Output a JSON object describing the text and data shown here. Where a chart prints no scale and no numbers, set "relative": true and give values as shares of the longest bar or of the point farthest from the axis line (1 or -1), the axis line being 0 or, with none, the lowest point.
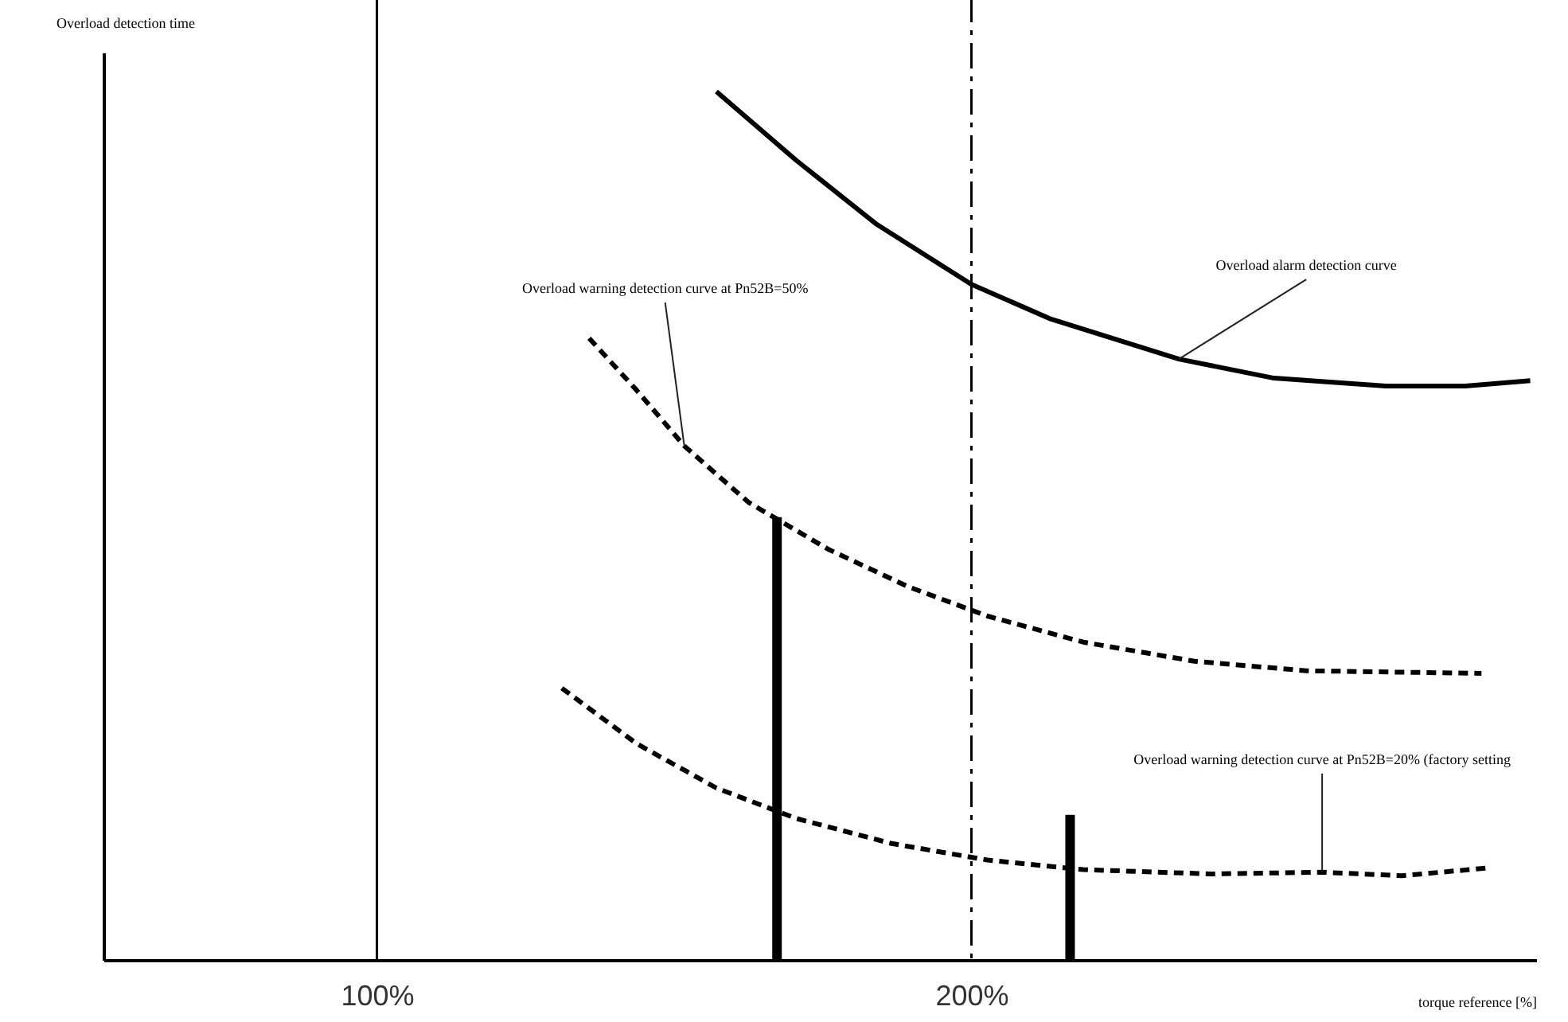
{
  "chart_data": {
    "type": "line",
    "relative": true,
    "xlabel": "torque reference [%]",
    "ylabel": "Overload detection time",
    "xlim": [
      54,
      295
    ],
    "xticks": [
      {
        "value": 100,
        "label": "100%"
      },
      {
        "value": 200,
        "label": "200%"
      }
    ],
    "grid": false,
    "series": [
      {
        "color": "#000000",
        "line_style": "solid",
        "x": [
          157.1,
          170.5,
          183.9,
          200,
          213.4,
          234.9,
          250.9,
          269.7,
          283.1,
          294
        ],
        "values": [
          1,
          0.921,
          0.848,
          0.778,
          0.738,
          0.692,
          0.67,
          0.661,
          0.661,
          0.667
        ]
      },
      {
        "color": "#000000",
        "line_style": "dashed",
        "x": [
          135.7,
          143.7,
          151.7,
          162.5,
          175.9,
          189.3,
          202.7,
          218.8,
          237.5,
          256.3,
          285.8
        ],
        "values": [
          0.716,
          0.656,
          0.592,
          0.527,
          0.473,
          0.43,
          0.396,
          0.366,
          0.344,
          0.333,
          0.33
        ]
      },
      {
        "color": "#000000",
        "line_style": "dashed",
        "x": [
          131.1,
          143.7,
          157.1,
          170.5,
          186.6,
          202.7,
          218.8,
          240.2,
          259.0,
          272.4,
          287.1
        ],
        "values": [
          0.313,
          0.249,
          0.198,
          0.163,
          0.134,
          0.115,
          0.104,
          0.099,
          0.101,
          0.097,
          0.106
        ]
      },
      {
        "color": "#000000",
        "line_style": "solid",
        "x": [
          167.3,
          167.3
        ],
        "values": [
          0,
          0.51
        ]
      },
      {
        "color": "#000000",
        "line_style": "solid",
        "x": [
          216.6,
          216.6
        ],
        "values": [
          0,
          0.167
        ]
      }
    ],
    "ref_lines": [
      {
        "axis": "x",
        "value": 100,
        "color": "#000000",
        "line_style": "solid"
      },
      {
        "axis": "x",
        "value": 200,
        "color": "#000000",
        "line_style": "dashed"
      }
    ],
    "annotations": [
      {
        "text": "Overload alarm detection curve",
        "x": 234.9,
        "y": 0.692
      },
      {
        "text": "Overload warning detection curve at Pn52B=50%",
        "x": 151.7,
        "y": 0.592
      },
      {
        "text": "Overload warning detection curve at Pn52B=20% (factory setting",
        "x": 259.0,
        "y": 0.101
      }
    ]
  }
}
